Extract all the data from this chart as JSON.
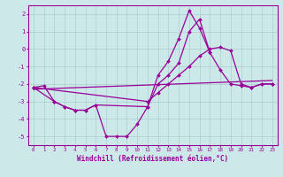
{
  "xlabel": "Windchill (Refroidissement éolien,°C)",
  "background_color": "#cde8e8",
  "grid_color": "#aacfcf",
  "line_color": "#990099",
  "ylim": [
    -5.5,
    2.5
  ],
  "yticks": [
    -5,
    -4,
    -3,
    -2,
    -1,
    0,
    1,
    2
  ],
  "xlim": [
    -0.5,
    23.5
  ],
  "line1_x": [
    0,
    1,
    2,
    3,
    4,
    5,
    6,
    7,
    8,
    9,
    10,
    11,
    12,
    13,
    14,
    15,
    16,
    17
  ],
  "line1_y": [
    -2.2,
    -2.1,
    -3.0,
    -3.3,
    -3.5,
    -3.5,
    -3.2,
    -5.0,
    -5.0,
    -5.0,
    -4.3,
    -3.3,
    -1.5,
    -0.7,
    0.6,
    2.2,
    1.2,
    -0.2
  ],
  "line2_x": [
    0,
    2,
    3,
    4,
    5,
    6,
    11,
    12,
    13,
    14,
    15,
    16,
    17,
    18,
    19,
    20,
    21,
    22,
    23
  ],
  "line2_y": [
    -2.2,
    -3.0,
    -3.3,
    -3.5,
    -3.5,
    -3.2,
    -3.3,
    -2.0,
    -1.5,
    -0.8,
    1.0,
    1.7,
    -0.2,
    -1.2,
    -2.0,
    -2.1,
    -2.2,
    -2.0,
    -2.0
  ],
  "line3_x": [
    0,
    11,
    12,
    13,
    14,
    15,
    16,
    17,
    18,
    19,
    20,
    21,
    22,
    23
  ],
  "line3_y": [
    -2.2,
    -3.0,
    -2.5,
    -2.0,
    -1.5,
    -1.0,
    -0.4,
    0.0,
    0.1,
    -0.1,
    -2.0,
    -2.2,
    -2.0,
    -2.0
  ],
  "line4_x": [
    0,
    23
  ],
  "line4_y": [
    -2.3,
    -1.8
  ],
  "ytick_labels": [
    "-5",
    "-4",
    "-3",
    "-2",
    "-1",
    "0",
    "1",
    "2"
  ]
}
